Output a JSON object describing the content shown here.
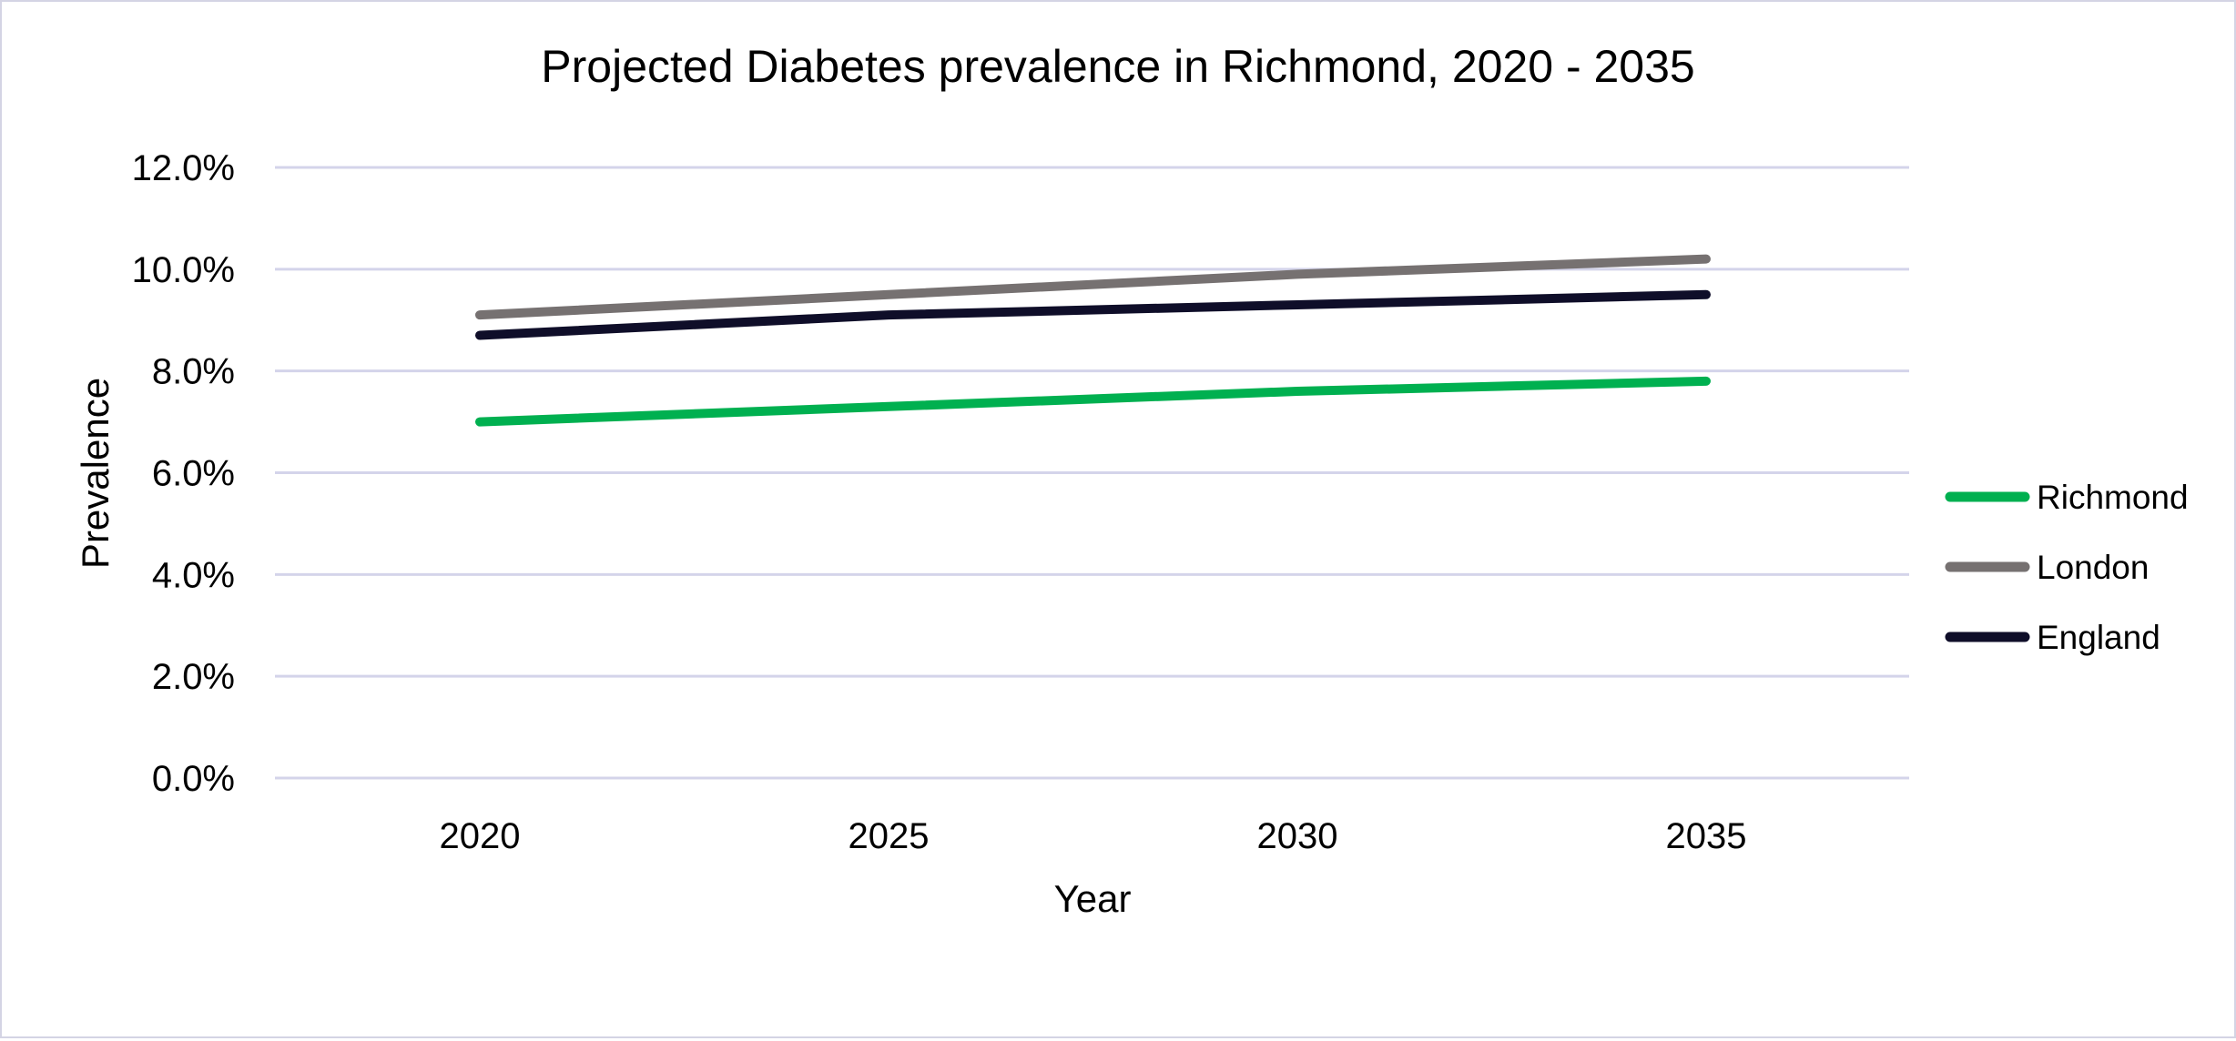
{
  "chart_data": {
    "type": "line",
    "title": "Projected Diabetes prevalence in Richmond, 2020 - 2035",
    "xlabel": "Year",
    "ylabel": "Prevalence",
    "categories": [
      "2020",
      "2025",
      "2030",
      "2035"
    ],
    "ylim": [
      0,
      12
    ],
    "yticks": [
      0,
      2,
      4,
      6,
      8,
      10,
      12
    ],
    "ytick_labels": [
      "0.0%",
      "2.0%",
      "4.0%",
      "6.0%",
      "8.0%",
      "10.0%",
      "12.0%"
    ],
    "grid": true,
    "legend_position": "right",
    "series": [
      {
        "name": "Richmond",
        "values": [
          7.0,
          7.3,
          7.6,
          7.8
        ],
        "color": "#00b050"
      },
      {
        "name": "London",
        "values": [
          9.1,
          9.5,
          9.9,
          10.2
        ],
        "color": "#767171"
      },
      {
        "name": "England",
        "values": [
          8.7,
          9.1,
          9.3,
          9.5
        ],
        "color": "#0f0e29"
      }
    ]
  }
}
